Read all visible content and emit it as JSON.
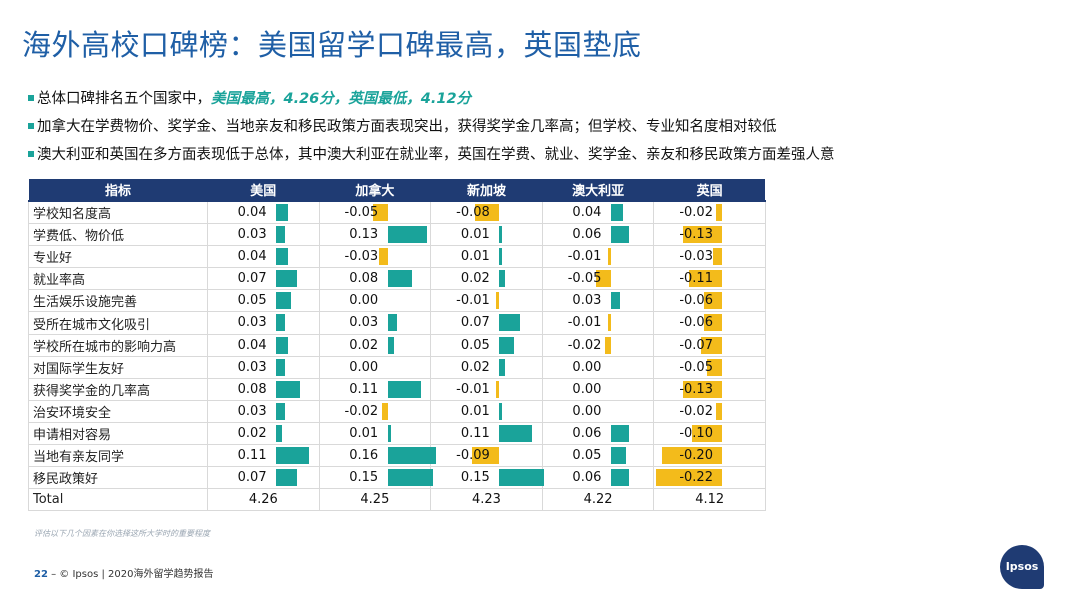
{
  "title": "海外高校口碑榜：美国留学口碑最高，英国垫底",
  "bullets": [
    {
      "text": "总体口碑排名五个国家中，",
      "highlight": "美国最高，4.26分，英国最低，4.12分"
    },
    {
      "text": "加拿大在学费物价、奖学金、当地亲友和移民政策方面表现突出，获得奖学金几率高；但学校、专业知名度相对较低",
      "highlight": ""
    },
    {
      "text": "澳大利亚和英国在多方面表现低于总体，其中澳大利亚在就业率，英国在学费、就业、奖学金、亲友和移民政策方面差强人意",
      "highlight": ""
    }
  ],
  "chart_data": {
    "type": "table",
    "header_label": "指标",
    "columns": [
      "美国",
      "加拿大",
      "新加坡",
      "澳大利亚",
      "英国"
    ],
    "rows": [
      {
        "label": "学校知名度高",
        "values": [
          "0.04",
          "-0.05",
          "-0.08",
          "0.04",
          "-0.02"
        ]
      },
      {
        "label": "学费低、物价低",
        "values": [
          "0.03",
          "0.13",
          "0.01",
          "0.06",
          "-0.13"
        ]
      },
      {
        "label": "专业好",
        "values": [
          "0.04",
          "-0.03",
          "0.01",
          "-0.01",
          "-0.03"
        ]
      },
      {
        "label": "就业率高",
        "values": [
          "0.07",
          "0.08",
          "0.02",
          "-0.05",
          "-0.11"
        ]
      },
      {
        "label": "生活娱乐设施完善",
        "values": [
          "0.05",
          "0.00",
          "-0.01",
          "0.03",
          "-0.06"
        ]
      },
      {
        "label": "受所在城市文化吸引",
        "values": [
          "0.03",
          "0.03",
          "0.07",
          "-0.01",
          "-0.06"
        ]
      },
      {
        "label": "学校所在城市的影响力高",
        "values": [
          "0.04",
          "0.02",
          "0.05",
          "-0.02",
          "-0.07"
        ]
      },
      {
        "label": "对国际学生友好",
        "values": [
          "0.03",
          "0.00",
          "0.02",
          "0.00",
          "-0.05"
        ]
      },
      {
        "label": "获得奖学金的几率高",
        "values": [
          "0.08",
          "0.11",
          "-0.01",
          "0.00",
          "-0.13"
        ]
      },
      {
        "label": "治安环境安全",
        "values": [
          "0.03",
          "-0.02",
          "0.01",
          "0.00",
          "-0.02"
        ]
      },
      {
        "label": "申请相对容易",
        "values": [
          "0.02",
          "0.01",
          "0.11",
          "0.06",
          "-0.10"
        ]
      },
      {
        "label": "当地有亲友同学",
        "values": [
          "0.11",
          "0.16",
          "-0.09",
          "0.05",
          "-0.20"
        ]
      },
      {
        "label": "移民政策好",
        "values": [
          "0.07",
          "0.15",
          "0.15",
          "0.06",
          "-0.22"
        ]
      }
    ],
    "total": {
      "label": "Total",
      "values": [
        "4.26",
        "4.25",
        "4.23",
        "4.22",
        "4.12"
      ]
    },
    "colors": {
      "positive": "#1aa39a",
      "negative": "#f3bb1b",
      "header": "#1f3b73"
    }
  },
  "note": "评估以下几个因素在你选择这所大学时的重要程度",
  "footer": {
    "page": "22",
    "dash": "–",
    "text": "© Ipsos | 2020海外留学趋势报告"
  },
  "logo": "Ipsos"
}
